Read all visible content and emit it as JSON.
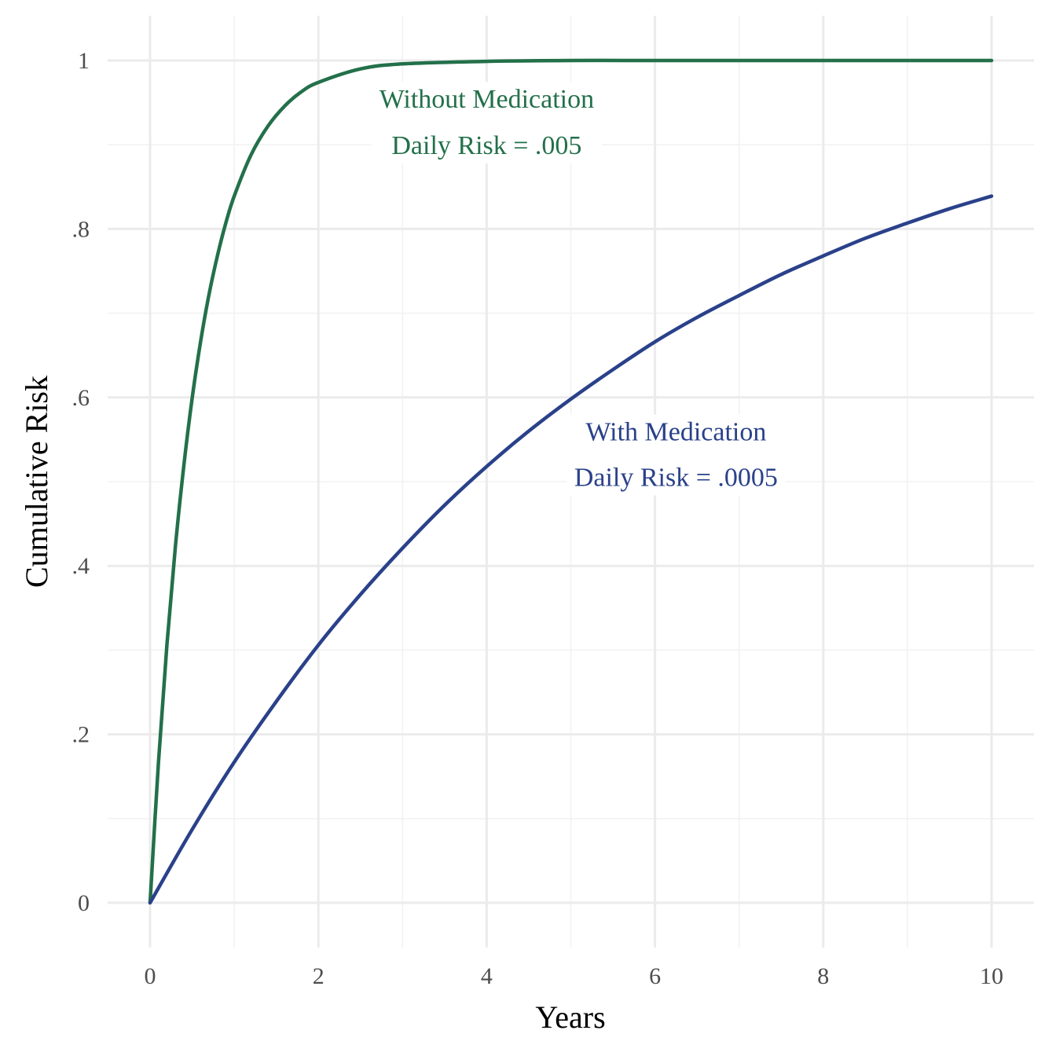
{
  "chart_data": {
    "type": "line",
    "xlabel": "Years",
    "ylabel": "Cumulative Risk",
    "xlim": [
      0,
      10
    ],
    "ylim": [
      0,
      1
    ],
    "x_ticks": [
      0,
      2,
      4,
      6,
      8,
      10
    ],
    "x_tick_labels": [
      "0",
      "2",
      "4",
      "6",
      "8",
      "10"
    ],
    "y_ticks": [
      0,
      0.2,
      0.4,
      0.6,
      0.8,
      1
    ],
    "y_tick_labels": [
      "0",
      ".2",
      ".4",
      ".6",
      ".8",
      "1"
    ],
    "grid": true,
    "legend": "none",
    "series": [
      {
        "key": "without",
        "color": "#23704a",
        "x": [
          0,
          0.1,
          0.2,
          0.3,
          0.4,
          0.5,
          0.6,
          0.7,
          0.8,
          0.9,
          1.0,
          1.2,
          1.4,
          1.6,
          1.8,
          2.0,
          2.5,
          3.0,
          4.0,
          5.0,
          6.0,
          7.0,
          8.0,
          9.0,
          10.0
        ],
        "values": [
          0,
          0.167,
          0.306,
          0.422,
          0.518,
          0.599,
          0.666,
          0.722,
          0.768,
          0.807,
          0.839,
          0.888,
          0.922,
          0.946,
          0.963,
          0.974,
          0.99,
          0.996,
          0.999,
          1.0,
          1.0,
          1.0,
          1.0,
          1.0,
          1.0
        ]
      },
      {
        "key": "with",
        "color": "#2a418a",
        "x": [
          0,
          0.5,
          1.0,
          1.5,
          2.0,
          2.5,
          3.0,
          3.5,
          4.0,
          4.5,
          5.0,
          5.5,
          6.0,
          6.5,
          7.0,
          7.5,
          8.0,
          8.5,
          9.0,
          9.5,
          10.0
        ],
        "values": [
          0,
          0.087,
          0.167,
          0.239,
          0.306,
          0.366,
          0.421,
          0.472,
          0.518,
          0.56,
          0.598,
          0.633,
          0.666,
          0.695,
          0.721,
          0.746,
          0.768,
          0.789,
          0.807,
          0.824,
          0.839
        ]
      }
    ],
    "annotations": [
      {
        "key": "without",
        "line1": "Without Medication",
        "line2": "Daily Risk = .005",
        "color": "#23704a",
        "x": 4.0,
        "y1": 0.955,
        "y2": 0.9
      },
      {
        "key": "with",
        "line1": "With Medication",
        "line2": "Daily Risk = .0005",
        "color": "#2a418a",
        "x": 6.25,
        "y1": 0.56,
        "y2": 0.506
      }
    ]
  }
}
